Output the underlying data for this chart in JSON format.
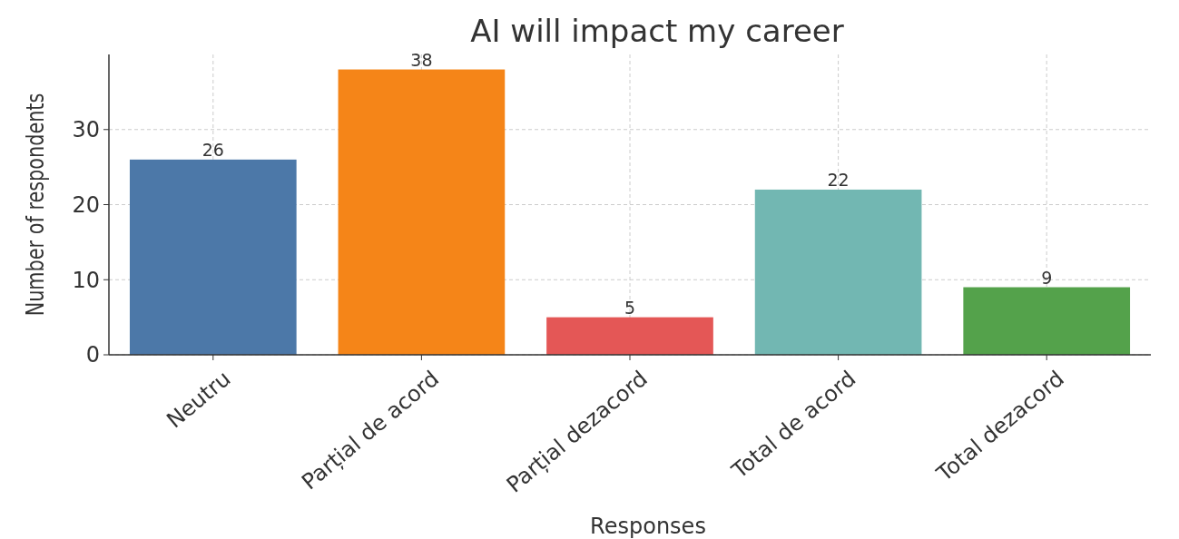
{
  "chart_data": {
    "type": "bar",
    "title": "AI will impact my career",
    "xlabel": "Responses",
    "ylabel": "Number of respondents",
    "categories": [
      "Neutru",
      "Parțial de acord",
      "Parțial dezacord",
      "Total de acord",
      "Total dezacord"
    ],
    "values": [
      26,
      38,
      5,
      22,
      9
    ],
    "colors": [
      "#4c78a8",
      "#f58518",
      "#e45756",
      "#72b7b2",
      "#54a24b"
    ],
    "ylim": [
      0,
      40
    ],
    "yticks": [
      0,
      10,
      20,
      30
    ],
    "grid": true,
    "data_labels": true
  }
}
